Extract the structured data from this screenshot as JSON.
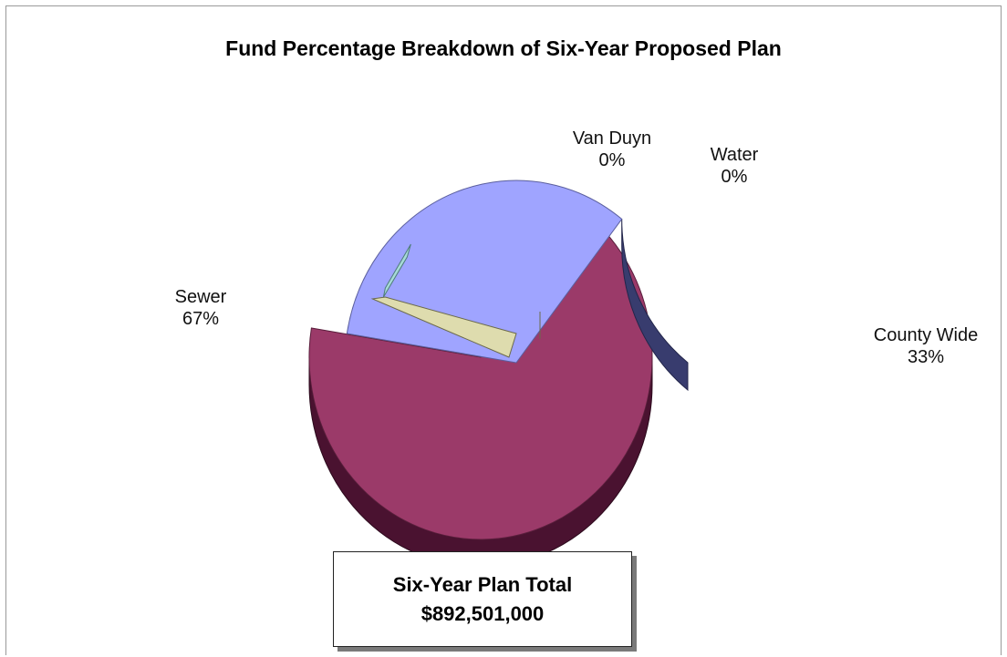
{
  "chart_data": {
    "type": "pie",
    "title": "Fund Percentage Breakdown of Six-Year Proposed Plan",
    "slices": [
      {
        "name": "Sewer",
        "value": 67,
        "label": "67%",
        "color": "#9b3a69"
      },
      {
        "name": "County Wide",
        "value": 33,
        "label": "33%",
        "color": "#9fa4ff"
      },
      {
        "name": "Van Duyn",
        "value": 0,
        "label": "0%",
        "color": "#dedcae"
      },
      {
        "name": "Water",
        "value": 0,
        "label": "0%",
        "color": "#a7dad8"
      }
    ],
    "annotation": {
      "line1": "Six-Year Plan Total",
      "line2": "$892,501,000"
    }
  }
}
